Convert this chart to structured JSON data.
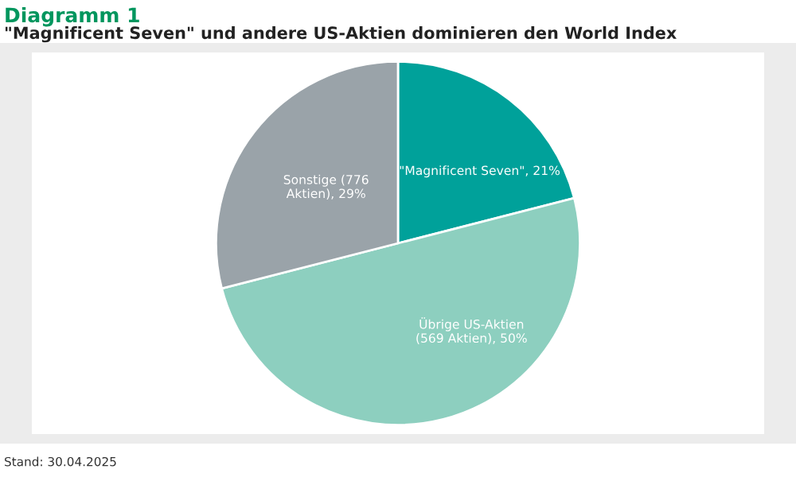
{
  "chart_data": {
    "type": "pie",
    "title": "Diagramm 1",
    "subtitle": "\"Magnificent Seven\" und andere US-Aktien dominieren den World Index",
    "categories": [
      "\"Magnificent Seven\", 21%",
      "Übrige US-Aktien\n(569 Aktien), 50%",
      "Sonstige (776\nAktien), 29%"
    ],
    "values": [
      21,
      50,
      29
    ],
    "colors": [
      "#00a19a",
      "#8dcfbf",
      "#9aa3a9"
    ],
    "annotations": [
      "Stand: 30.04.2025"
    ]
  }
}
